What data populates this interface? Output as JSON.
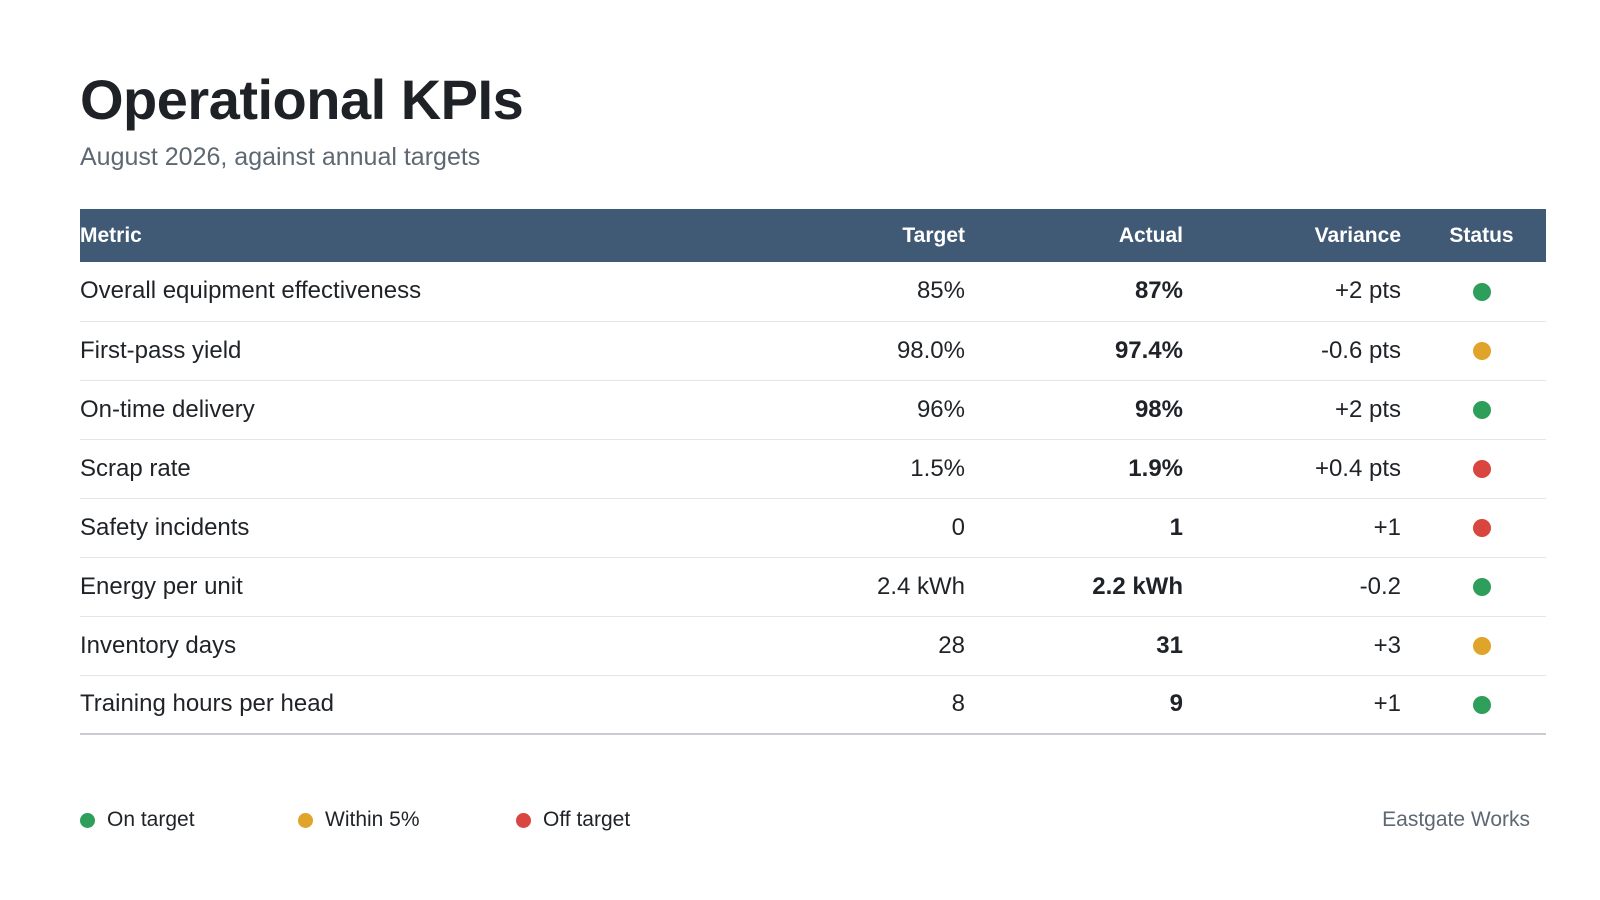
{
  "header": {
    "title": "Operational KPIs",
    "subtitle": "August 2026, against annual targets"
  },
  "table": {
    "columns": {
      "metric": "Metric",
      "target": "Target",
      "actual": "Actual",
      "variance": "Variance",
      "status": "Status"
    },
    "rows": [
      {
        "metric": "Overall equipment effectiveness",
        "target": "85%",
        "actual": "87%",
        "variance": "+2 pts",
        "status": "on-target"
      },
      {
        "metric": "First-pass yield",
        "target": "98.0%",
        "actual": "97.4%",
        "variance": "-0.6 pts",
        "status": "within-5"
      },
      {
        "metric": "On-time delivery",
        "target": "96%",
        "actual": "98%",
        "variance": "+2 pts",
        "status": "on-target"
      },
      {
        "metric": "Scrap rate",
        "target": "1.5%",
        "actual": "1.9%",
        "variance": "+0.4 pts",
        "status": "off-target"
      },
      {
        "metric": "Safety incidents",
        "target": "0",
        "actual": "1",
        "variance": "+1",
        "status": "off-target"
      },
      {
        "metric": "Energy per unit",
        "target": "2.4 kWh",
        "actual": "2.2 kWh",
        "variance": "-0.2",
        "status": "on-target"
      },
      {
        "metric": "Inventory days",
        "target": "28",
        "actual": "31",
        "variance": "+3",
        "status": "within-5"
      },
      {
        "metric": "Training hours per head",
        "target": "8",
        "actual": "9",
        "variance": "+1",
        "status": "on-target"
      }
    ]
  },
  "legend": {
    "on_target": "On target",
    "within_5": "Within 5%",
    "off_target": "Off target"
  },
  "status_colors": {
    "on-target": "#2e9e5b",
    "within-5": "#e0a42a",
    "off-target": "#d9453f"
  },
  "footer": {
    "brand": "Eastgate Works"
  }
}
